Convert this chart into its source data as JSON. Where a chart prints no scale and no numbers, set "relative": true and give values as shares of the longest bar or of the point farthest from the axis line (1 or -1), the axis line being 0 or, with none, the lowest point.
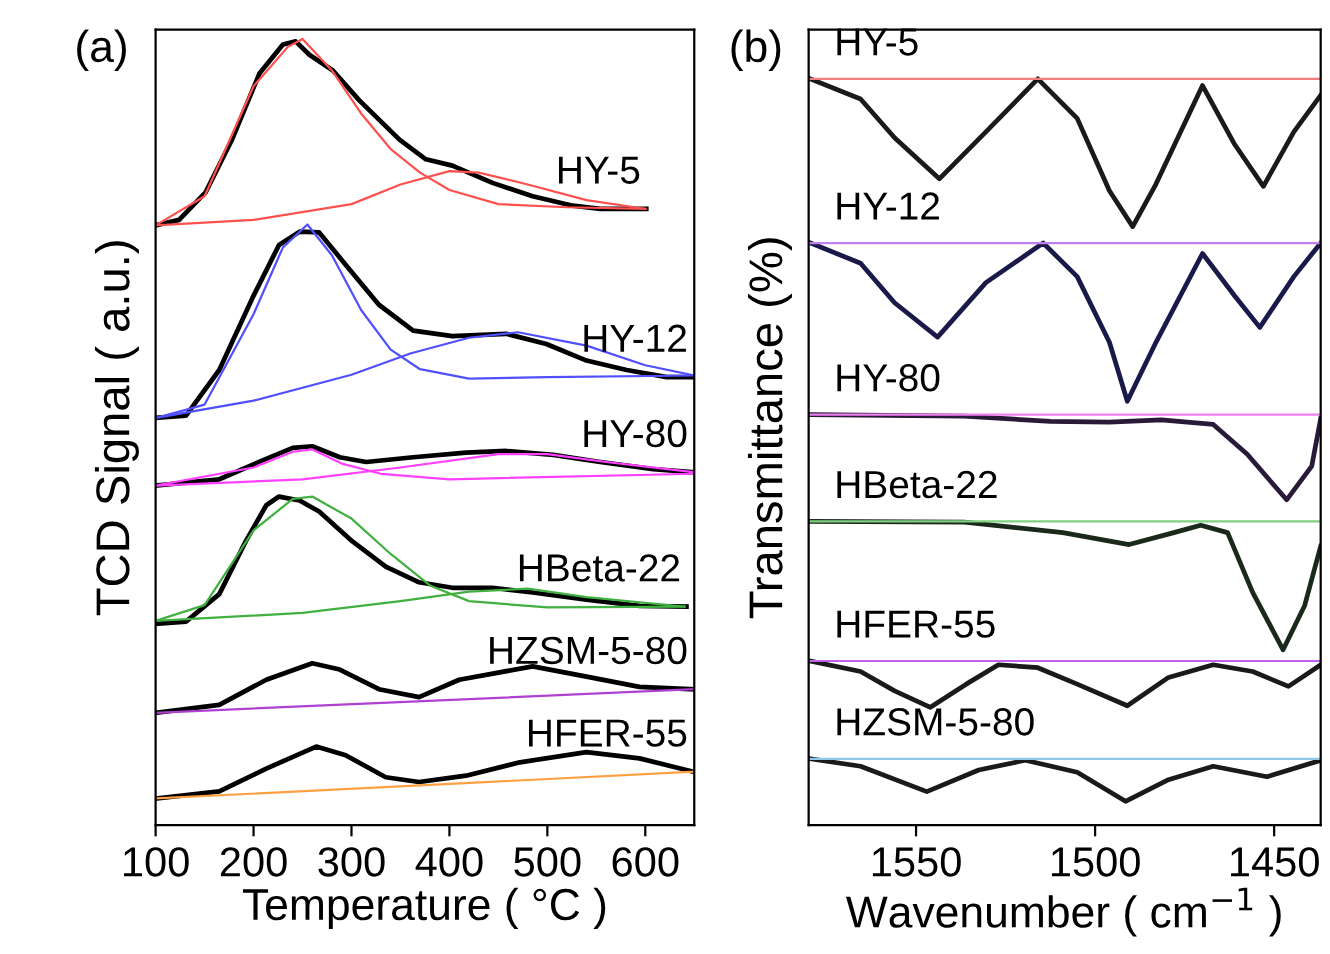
{
  "chart_data": [
    {
      "type": "line",
      "relative": true,
      "xlabel": "Temperature ( °C )",
      "ylabel": "TCD Signal ( a.u.)",
      "xlim": [
        100,
        650
      ],
      "xticks": [
        100,
        200,
        300,
        400,
        500,
        600
      ],
      "annotations": [
        "(a)"
      ],
      "grid": false,
      "legend": false,
      "series": [
        {
          "name": "HY-5",
          "color": "#000000",
          "x": [
            100,
            124,
            151,
            178,
            206,
            230,
            243,
            257,
            281,
            308,
            349,
            376,
            403,
            444,
            485,
            526,
            554,
            601
          ],
          "values": [
            0.763,
            0.77,
            0.805,
            0.872,
            0.956,
            0.993,
            0.997,
            0.98,
            0.96,
            0.922,
            0.872,
            0.847,
            0.839,
            0.817,
            0.8,
            0.788,
            0.784,
            0.784
          ]
        },
        {
          "color": "#ff5050",
          "x": [
            100,
            150,
            200,
            235,
            250,
            280,
            310,
            340,
            370,
            400,
            450,
            520,
            600
          ],
          "values": [
            0.763,
            0.8,
            0.94,
            0.99,
            1.0,
            0.96,
            0.905,
            0.86,
            0.83,
            0.808,
            0.79,
            0.786,
            0.784
          ]
        },
        {
          "color": "#ff5050",
          "x": [
            100,
            200,
            300,
            350,
            400,
            430,
            480,
            540,
            600
          ],
          "values": [
            0.763,
            0.77,
            0.79,
            0.815,
            0.832,
            0.83,
            0.815,
            0.795,
            0.784
          ]
        },
        {
          "name": "HY-12",
          "color": "#000000",
          "x": [
            100,
            131,
            165,
            199,
            226,
            247,
            267,
            294,
            328,
            363,
            403,
            458,
            499,
            540,
            581,
            622,
            649
          ],
          "values": [
            0.518,
            0.521,
            0.579,
            0.671,
            0.738,
            0.755,
            0.754,
            0.713,
            0.662,
            0.629,
            0.622,
            0.625,
            0.612,
            0.591,
            0.579,
            0.57,
            0.57
          ]
        },
        {
          "color": "#5050ff",
          "x": [
            100,
            150,
            200,
            230,
            255,
            280,
            310,
            340,
            370,
            420,
            500,
            650
          ],
          "values": [
            0.518,
            0.535,
            0.65,
            0.735,
            0.764,
            0.725,
            0.655,
            0.605,
            0.58,
            0.568,
            0.57,
            0.572
          ]
        },
        {
          "color": "#5050ff",
          "x": [
            100,
            200,
            300,
            360,
            420,
            470,
            540,
            600,
            650
          ],
          "values": [
            0.518,
            0.54,
            0.573,
            0.6,
            0.62,
            0.627,
            0.61,
            0.585,
            0.572
          ]
        },
        {
          "name": "HY-80",
          "color": "#000000",
          "x": [
            100,
            165,
            213,
            240,
            260,
            288,
            315,
            363,
            417,
            458,
            506,
            554,
            608,
            649
          ],
          "values": [
            0.432,
            0.44,
            0.466,
            0.48,
            0.482,
            0.468,
            0.462,
            0.468,
            0.474,
            0.476,
            0.471,
            0.462,
            0.453,
            0.449
          ]
        },
        {
          "color": "#ff40ff",
          "x": [
            100,
            200,
            240,
            260,
            290,
            330,
            400,
            650
          ],
          "values": [
            0.432,
            0.455,
            0.475,
            0.478,
            0.46,
            0.447,
            0.44,
            0.447
          ]
        },
        {
          "color": "#ff40ff",
          "x": [
            100,
            250,
            350,
            450,
            500,
            560,
            650
          ],
          "values": [
            0.432,
            0.44,
            0.455,
            0.472,
            0.472,
            0.462,
            0.449
          ]
        },
        {
          "name": "HBeta-22",
          "color": "#000000",
          "x": [
            100,
            131,
            165,
            192,
            213,
            226,
            247,
            267,
            301,
            335,
            369,
            403,
            444,
            485,
            540,
            594,
            642
          ],
          "values": [
            0.256,
            0.259,
            0.294,
            0.361,
            0.407,
            0.418,
            0.413,
            0.399,
            0.361,
            0.329,
            0.309,
            0.302,
            0.302,
            0.296,
            0.287,
            0.279,
            0.278
          ]
        },
        {
          "color": "#40b040",
          "x": [
            100,
            150,
            200,
            240,
            260,
            300,
            340,
            380,
            420,
            500,
            640
          ],
          "values": [
            0.26,
            0.28,
            0.375,
            0.415,
            0.418,
            0.39,
            0.345,
            0.305,
            0.285,
            0.277,
            0.278
          ]
        },
        {
          "color": "#40b040",
          "x": [
            100,
            250,
            350,
            420,
            480,
            540,
            640
          ],
          "values": [
            0.26,
            0.27,
            0.285,
            0.297,
            0.301,
            0.29,
            0.278
          ]
        },
        {
          "name": "HZSM-5-80",
          "color": "#000000",
          "x": [
            100,
            165,
            213,
            260,
            288,
            328,
            369,
            410,
            485,
            540,
            594,
            649
          ],
          "values": [
            0.143,
            0.153,
            0.185,
            0.206,
            0.198,
            0.173,
            0.163,
            0.185,
            0.202,
            0.189,
            0.176,
            0.173
          ]
        },
        {
          "color": "#b040d0",
          "x": [
            100,
            650
          ],
          "values": [
            0.143,
            0.173
          ]
        },
        {
          "name": "HFER-55",
          "color": "#000000",
          "x": [
            100,
            165,
            213,
            264,
            294,
            335,
            369,
            417,
            472,
            540,
            594,
            649
          ],
          "values": [
            0.034,
            0.043,
            0.072,
            0.1,
            0.089,
            0.061,
            0.055,
            0.063,
            0.08,
            0.093,
            0.085,
            0.068
          ]
        },
        {
          "color": "#ffa040",
          "x": [
            100,
            650
          ],
          "values": [
            0.034,
            0.068
          ]
        }
      ]
    },
    {
      "type": "line",
      "relative": true,
      "xlabel": "Wavenumber ( cm$^{−1}$ )",
      "ylabel": "Transmittance (%)",
      "xlim": [
        1580,
        1437
      ],
      "xticks": [
        1550,
        1500,
        1450
      ],
      "annotations": [
        "(b)"
      ],
      "grid": false,
      "legend": false,
      "series": [
        {
          "name": "HY-5",
          "color": "#1a1a1a",
          "x": [
            1579.5,
            1565.5,
            1556,
            1543.5,
            1530.5,
            1516,
            1505,
            1496,
            1489.5,
            1483,
            1470,
            1461,
            1453,
            1444.5,
            1437
          ],
          "values": [
            1.0,
            0.973,
            0.921,
            0.866,
            0.929,
            1.0,
            0.947,
            0.85,
            0.802,
            0.859,
            0.991,
            0.912,
            0.856,
            0.929,
            0.978
          ]
        },
        {
          "color": "#f08080",
          "x": [
            1580,
            1437
          ],
          "values": [
            1.0,
            1.0
          ]
        },
        {
          "name": "HY-12",
          "color": "#1a1a4a",
          "x": [
            1579.5,
            1565.5,
            1556,
            1544,
            1530.5,
            1514.5,
            1505,
            1496,
            1491,
            1483,
            1470,
            1461,
            1454,
            1444.5,
            1437
          ],
          "values": [
            0.78,
            0.753,
            0.7,
            0.654,
            0.727,
            0.78,
            0.735,
            0.647,
            0.568,
            0.647,
            0.766,
            0.709,
            0.667,
            0.735,
            0.78
          ]
        },
        {
          "color": "#c080f0",
          "x": [
            1580,
            1437
          ],
          "values": [
            0.78,
            0.78
          ]
        },
        {
          "name": "HY-80",
          "color": "#2a1a3a",
          "x": [
            1579.5,
            1536.5,
            1512.5,
            1496,
            1481.5,
            1467,
            1457.5,
            1446.5,
            1439.5,
            1437
          ],
          "values": [
            0.55,
            0.548,
            0.541,
            0.54,
            0.543,
            0.537,
            0.497,
            0.436,
            0.481,
            0.545
          ]
        },
        {
          "color": "#f080f0",
          "x": [
            1580,
            1437
          ],
          "values": [
            0.55,
            0.55
          ]
        },
        {
          "name": "HBeta-22",
          "color": "#1a2a1a",
          "x": [
            1579.5,
            1536.5,
            1509,
            1490.5,
            1478,
            1470.5,
            1463,
            1456,
            1447.5,
            1441.5,
            1437
          ],
          "values": [
            0.407,
            0.406,
            0.392,
            0.376,
            0.392,
            0.402,
            0.392,
            0.312,
            0.235,
            0.294,
            0.374
          ]
        },
        {
          "color": "#80d080",
          "x": [
            1580,
            1437
          ],
          "values": [
            0.407,
            0.407
          ]
        },
        {
          "name": "HFER-55",
          "color": "#1a1a1a",
          "x": [
            1579.5,
            1565.5,
            1556,
            1546,
            1536,
            1527,
            1516,
            1505,
            1491,
            1479.5,
            1467,
            1456,
            1446,
            1437
          ],
          "values": [
            0.22,
            0.206,
            0.18,
            0.158,
            0.189,
            0.215,
            0.211,
            0.189,
            0.16,
            0.198,
            0.215,
            0.206,
            0.186,
            0.215
          ]
        },
        {
          "color": "#c060f0",
          "x": [
            1580,
            1437
          ],
          "values": [
            0.22,
            0.22
          ]
        },
        {
          "name": "HZSM-5-80",
          "color": "#1a1a1a",
          "x": [
            1579.5,
            1565.5,
            1547,
            1532.5,
            1519.5,
            1505,
            1491.5,
            1479.5,
            1467,
            1452,
            1437
          ],
          "values": [
            0.089,
            0.079,
            0.045,
            0.074,
            0.087,
            0.071,
            0.032,
            0.061,
            0.079,
            0.065,
            0.087
          ]
        },
        {
          "color": "#90c8e8",
          "x": [
            1580,
            1437
          ],
          "values": [
            0.089,
            0.089
          ]
        }
      ]
    }
  ]
}
